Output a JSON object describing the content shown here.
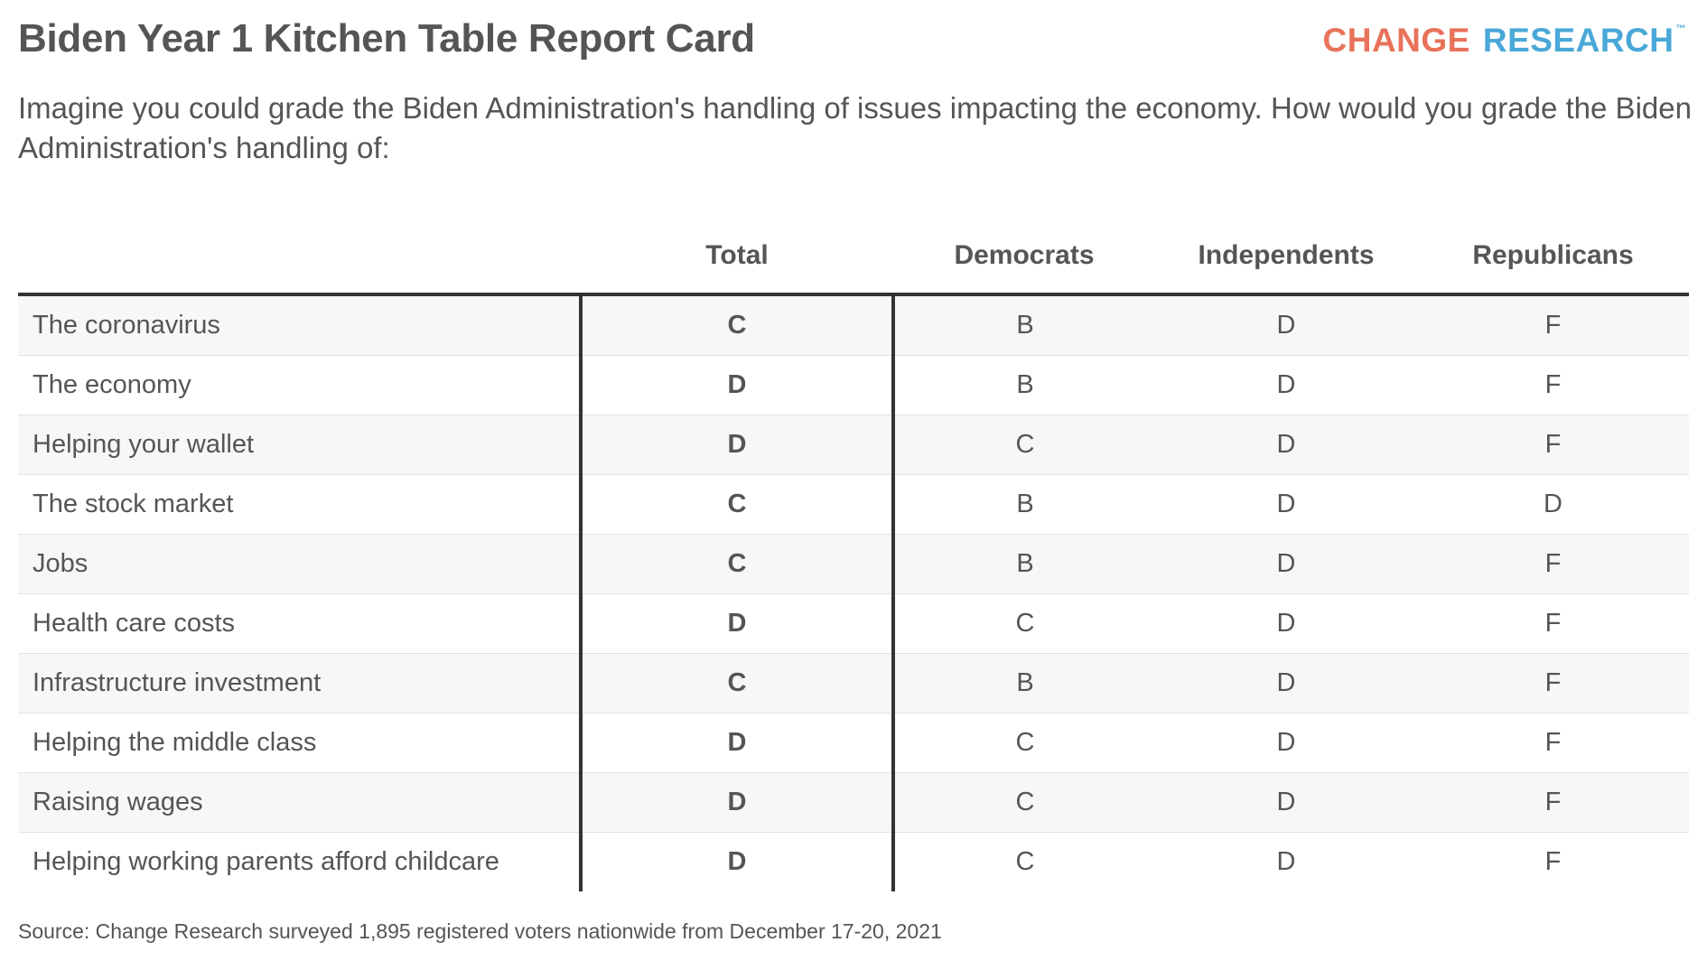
{
  "title": "Biden Year 1 Kitchen Table Report Card",
  "logo": {
    "word1": "CHANGE",
    "word2": "RESEARCH",
    "tm": "™"
  },
  "subtitle": "Imagine you could grade the Biden Administration's handling of issues impacting the economy. How would you grade the Biden Administration's handling of:",
  "source": "Source: Change Research surveyed 1,895 registered voters nationwide from December 17-20, 2021",
  "colors": {
    "logo_change": "#e8735a",
    "logo_research": "#4aa8d8",
    "text": "#555555",
    "row_stripe": "#f7f7f7",
    "rule": "#333333"
  },
  "chart_data": {
    "type": "table",
    "columns": [
      "",
      "Total",
      "Democrats",
      "Independents",
      "Republicans"
    ],
    "rows": [
      {
        "label": "The coronavirus",
        "grades": [
          "C",
          "B",
          "D",
          "F"
        ]
      },
      {
        "label": "The economy",
        "grades": [
          "D",
          "B",
          "D",
          "F"
        ]
      },
      {
        "label": "Helping your wallet",
        "grades": [
          "D",
          "C",
          "D",
          "F"
        ]
      },
      {
        "label": "The stock market",
        "grades": [
          "C",
          "B",
          "D",
          "D"
        ]
      },
      {
        "label": "Jobs",
        "grades": [
          "C",
          "B",
          "D",
          "F"
        ]
      },
      {
        "label": "Health care costs",
        "grades": [
          "D",
          "C",
          "D",
          "F"
        ]
      },
      {
        "label": "Infrastructure investment",
        "grades": [
          "C",
          "B",
          "D",
          "F"
        ]
      },
      {
        "label": "Helping the middle class",
        "grades": [
          "D",
          "C",
          "D",
          "F"
        ]
      },
      {
        "label": "Raising wages",
        "grades": [
          "D",
          "C",
          "D",
          "F"
        ]
      },
      {
        "label": "Helping working parents afford childcare",
        "grades": [
          "D",
          "C",
          "D",
          "F"
        ]
      }
    ]
  }
}
